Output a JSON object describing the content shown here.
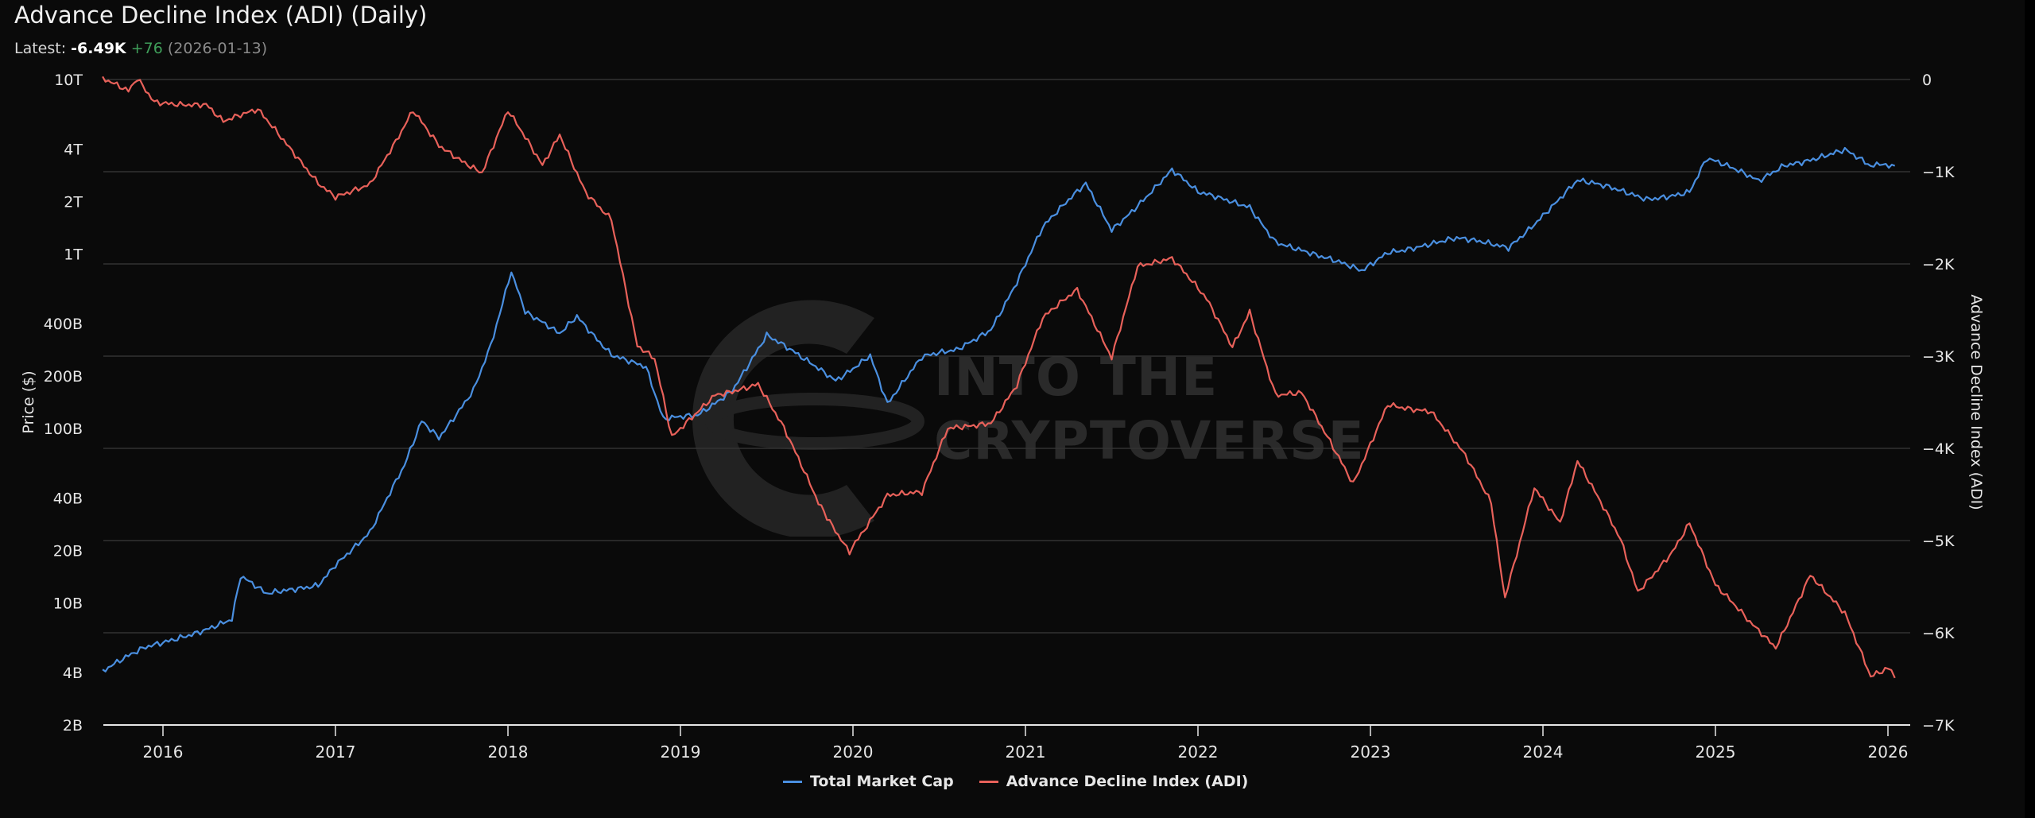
{
  "header": {
    "title": "Advance Decline Index (ADI) (Daily)",
    "latest_label": "Latest:",
    "latest_value": "-6.49K",
    "latest_change": "+76",
    "latest_date": "(2026-01-13)"
  },
  "watermark": {
    "line1": "INTO THE",
    "line2": "CRYPTOVERSE"
  },
  "legend": {
    "items": [
      {
        "label": "Total Market Cap",
        "color": "#4a8fe0"
      },
      {
        "label": "Advance Decline Index (ADI)",
        "color": "#e8615a"
      }
    ]
  },
  "colors": {
    "background": "#0a0a0a",
    "grid": "#333333",
    "market_cap": "#4a8fe0",
    "adi": "#e8615a",
    "positive_change": "#3f9e5a"
  },
  "chart_data": {
    "type": "line",
    "title": "Advance Decline Index (ADI) (Daily)",
    "xlabel": "",
    "ylabel_left": "Price ($)",
    "ylabel_right": "Advance Decline Index (ADI)",
    "x_ticks": [
      "2016",
      "2017",
      "2018",
      "2019",
      "2020",
      "2021",
      "2022",
      "2023",
      "2024",
      "2025",
      "2026"
    ],
    "x_range": [
      2015.65,
      2026.09
    ],
    "y_left_scale": "log",
    "y_left_ticks": [
      "10T",
      "4T",
      "2T",
      "1T",
      "400B",
      "200B",
      "100B",
      "40B",
      "20B",
      "10B",
      "4B",
      "2B"
    ],
    "y_left_range": [
      2000000000.0,
      10000000000000.0
    ],
    "y_right_ticks": [
      "0",
      "-1K",
      "-2K",
      "-3K",
      "-4K",
      "-5K",
      "-6K",
      "-7K"
    ],
    "y_right_range": [
      -7000,
      0
    ],
    "grid": true,
    "legend_position": "bottom",
    "series": [
      {
        "name": "Total Market Cap",
        "axis": "left",
        "color": "#4a8fe0",
        "x": [
          2015.65,
          2015.9,
          2016.1,
          2016.4,
          2016.45,
          2016.6,
          2016.9,
          2017.0,
          2017.2,
          2017.4,
          2017.5,
          2017.6,
          2017.8,
          2017.9,
          2018.02,
          2018.1,
          2018.3,
          2018.4,
          2018.6,
          2018.8,
          2018.9,
          2019.1,
          2019.3,
          2019.5,
          2019.7,
          2019.9,
          2020.1,
          2020.2,
          2020.4,
          2020.6,
          2020.8,
          2020.95,
          2021.1,
          2021.35,
          2021.5,
          2021.85,
          2022.0,
          2022.3,
          2022.45,
          2022.7,
          2022.95,
          2023.1,
          2023.5,
          2023.8,
          2024.0,
          2024.2,
          2024.6,
          2024.85,
          2024.95,
          2025.25,
          2025.4,
          2025.75,
          2025.9,
          2026.04
        ],
        "values": [
          4000000000.0,
          5500000000.0,
          6500000000.0,
          8000000000.0,
          14000000000.0,
          11000000000.0,
          13000000000.0,
          17000000000.0,
          25000000000.0,
          60000000000.0,
          110000000000.0,
          90000000000.0,
          170000000000.0,
          300000000000.0,
          800000000000.0,
          450000000000.0,
          350000000000.0,
          450000000000.0,
          270000000000.0,
          220000000000.0,
          110000000000.0,
          120000000000.0,
          170000000000.0,
          340000000000.0,
          250000000000.0,
          190000000000.0,
          270000000000.0,
          140000000000.0,
          250000000000.0,
          280000000000.0,
          380000000000.0,
          700000000000.0,
          1400000000000.0,
          2500000000000.0,
          1400000000000.0,
          3000000000000.0,
          2200000000000.0,
          1900000000000.0,
          1200000000000.0,
          950000000000.0,
          800000000000.0,
          1050000000000.0,
          1200000000000.0,
          1100000000000.0,
          1700000000000.0,
          2600000000000.0,
          2100000000000.0,
          2300000000000.0,
          3500000000000.0,
          2600000000000.0,
          3300000000000.0,
          3900000000000.0,
          3100000000000.0,
          3200000000000.0
        ]
      },
      {
        "name": "Advance Decline Index (ADI)",
        "axis": "right",
        "color": "#e8615a",
        "x": [
          2015.65,
          2015.8,
          2015.85,
          2015.95,
          2016.25,
          2016.35,
          2016.55,
          2016.9,
          2017.0,
          2017.2,
          2017.35,
          2017.45,
          2017.6,
          2017.85,
          2018.0,
          2018.2,
          2018.3,
          2018.45,
          2018.6,
          2018.75,
          2018.85,
          2018.95,
          2019.2,
          2019.45,
          2019.6,
          2019.8,
          2019.98,
          2020.2,
          2020.4,
          2020.55,
          2020.8,
          2020.95,
          2021.1,
          2021.3,
          2021.5,
          2021.65,
          2021.85,
          2022.05,
          2022.2,
          2022.3,
          2022.45,
          2022.6,
          2022.9,
          2023.1,
          2023.35,
          2023.55,
          2023.7,
          2023.78,
          2023.95,
          2024.1,
          2024.2,
          2024.45,
          2024.55,
          2024.75,
          2024.85,
          2025.0,
          2025.2,
          2025.35,
          2025.55,
          2025.75,
          2025.9,
          2026.0,
          2026.04
        ],
        "values": [
          0,
          -150,
          -10,
          -250,
          -250,
          -450,
          -350,
          -1100,
          -1250,
          -1150,
          -700,
          -350,
          -700,
          -1000,
          -350,
          -950,
          -600,
          -1200,
          -1500,
          -2900,
          -3050,
          -3900,
          -3400,
          -3300,
          -3800,
          -4600,
          -5100,
          -4500,
          -4500,
          -3800,
          -3700,
          -3300,
          -2600,
          -2300,
          -3000,
          -2000,
          -1950,
          -2400,
          -2900,
          -2500,
          -3400,
          -3400,
          -4400,
          -3500,
          -3600,
          -4100,
          -4600,
          -5600,
          -4400,
          -4800,
          -4150,
          -5000,
          -5550,
          -5100,
          -4800,
          -5500,
          -5900,
          -6150,
          -5350,
          -5800,
          -6500,
          -6400,
          -6490
        ]
      }
    ]
  }
}
